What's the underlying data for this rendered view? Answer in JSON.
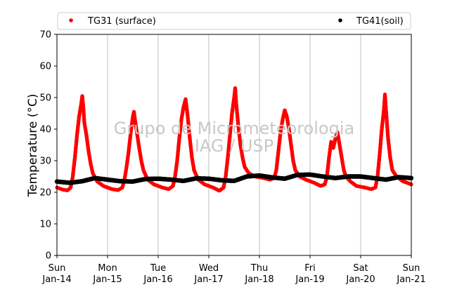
{
  "chart_data": {
    "type": "scatter",
    "ylabel": "Temperature (°C)",
    "ylim": [
      0,
      70
    ],
    "yticks": [
      0,
      10,
      20,
      30,
      40,
      50,
      60,
      70
    ],
    "xlim": [
      "2024-01-14",
      "2024-01-21"
    ],
    "xticks": [
      {
        "day": "Sun",
        "date": "Jan-14"
      },
      {
        "day": "Mon",
        "date": "Jan-15"
      },
      {
        "day": "Tue",
        "date": "Jan-16"
      },
      {
        "day": "Wed",
        "date": "Jan-17"
      },
      {
        "day": "Thu",
        "date": "Jan-18"
      },
      {
        "day": "Fri",
        "date": "Jan-19"
      },
      {
        "day": "Sat",
        "date": "Jan-20"
      },
      {
        "day": "Sun",
        "date": "Jan-21"
      }
    ],
    "grid": "vertical",
    "legend_position": "top",
    "watermark": [
      "Grupo de Micrometeorologia",
      "IAG / USP"
    ],
    "series": [
      {
        "name": "TG31 (surface)",
        "color": "#ff0000",
        "points": [
          [
            "2024-01-14T00:00",
            21.5
          ],
          [
            "2024-01-14T03:00",
            20.8
          ],
          [
            "2024-01-14T05:00",
            20.6
          ],
          [
            "2024-01-14T06:30",
            21.5
          ],
          [
            "2024-01-14T07:30",
            25
          ],
          [
            "2024-01-14T08:30",
            31
          ],
          [
            "2024-01-14T09:30",
            38
          ],
          [
            "2024-01-14T10:30",
            44
          ],
          [
            "2024-01-14T11:30",
            48
          ],
          [
            "2024-01-14T12:00",
            50.5
          ],
          [
            "2024-01-14T12:30",
            47
          ],
          [
            "2024-01-14T13:00",
            42
          ],
          [
            "2024-01-14T14:00",
            38
          ],
          [
            "2024-01-14T15:00",
            33
          ],
          [
            "2024-01-14T16:00",
            29
          ],
          [
            "2024-01-14T17:00",
            26
          ],
          [
            "2024-01-14T19:00",
            23.5
          ],
          [
            "2024-01-14T22:00",
            22
          ],
          [
            "2024-01-15T02:00",
            21
          ],
          [
            "2024-01-15T05:00",
            20.7
          ],
          [
            "2024-01-15T07:00",
            21.5
          ],
          [
            "2024-01-15T08:00",
            24
          ],
          [
            "2024-01-15T09:00",
            28
          ],
          [
            "2024-01-15T10:00",
            33
          ],
          [
            "2024-01-15T11:00",
            39
          ],
          [
            "2024-01-15T12:00",
            44
          ],
          [
            "2024-01-15T12:30",
            45.5
          ],
          [
            "2024-01-15T13:00",
            43
          ],
          [
            "2024-01-15T14:00",
            38.5
          ],
          [
            "2024-01-15T15:00",
            34
          ],
          [
            "2024-01-15T16:00",
            30
          ],
          [
            "2024-01-15T17:00",
            27
          ],
          [
            "2024-01-15T19:00",
            24
          ],
          [
            "2024-01-15T22:00",
            22.5
          ],
          [
            "2024-01-16T02:00",
            21.5
          ],
          [
            "2024-01-16T05:00",
            21
          ],
          [
            "2024-01-16T07:00",
            22
          ],
          [
            "2024-01-16T08:00",
            25
          ],
          [
            "2024-01-16T09:00",
            30
          ],
          [
            "2024-01-16T10:00",
            37
          ],
          [
            "2024-01-16T11:00",
            43
          ],
          [
            "2024-01-16T12:00",
            47
          ],
          [
            "2024-01-16T13:00",
            49.5
          ],
          [
            "2024-01-16T14:00",
            44
          ],
          [
            "2024-01-16T15:00",
            37
          ],
          [
            "2024-01-16T16:00",
            31
          ],
          [
            "2024-01-16T17:00",
            27
          ],
          [
            "2024-01-16T19:00",
            24
          ],
          [
            "2024-01-16T22:00",
            22.5
          ],
          [
            "2024-01-17T02:00",
            21.5
          ],
          [
            "2024-01-17T05:00",
            20.5
          ],
          [
            "2024-01-17T07:00",
            21.5
          ],
          [
            "2024-01-17T08:00",
            25
          ],
          [
            "2024-01-17T09:00",
            31
          ],
          [
            "2024-01-17T10:00",
            38
          ],
          [
            "2024-01-17T11:00",
            45
          ],
          [
            "2024-01-17T12:00",
            50
          ],
          [
            "2024-01-17T12:30",
            53
          ],
          [
            "2024-01-17T13:00",
            48
          ],
          [
            "2024-01-17T14:00",
            41
          ],
          [
            "2024-01-17T15:00",
            35
          ],
          [
            "2024-01-17T16:00",
            31
          ],
          [
            "2024-01-17T17:00",
            28
          ],
          [
            "2024-01-17T19:00",
            26
          ],
          [
            "2024-01-17T22:00",
            25
          ],
          [
            "2024-01-18T02:00",
            24.5
          ],
          [
            "2024-01-18T05:00",
            24
          ],
          [
            "2024-01-18T07:00",
            24.5
          ],
          [
            "2024-01-18T08:00",
            27
          ],
          [
            "2024-01-18T09:00",
            33
          ],
          [
            "2024-01-18T10:00",
            39
          ],
          [
            "2024-01-18T11:00",
            43
          ],
          [
            "2024-01-18T12:00",
            46
          ],
          [
            "2024-01-18T13:00",
            44
          ],
          [
            "2024-01-18T14:00",
            40
          ],
          [
            "2024-01-18T15:00",
            35
          ],
          [
            "2024-01-18T16:00",
            30
          ],
          [
            "2024-01-18T17:00",
            27
          ],
          [
            "2024-01-18T19:00",
            25
          ],
          [
            "2024-01-18T22:00",
            24
          ],
          [
            "2024-01-19T02:00",
            23
          ],
          [
            "2024-01-19T05:00",
            22
          ],
          [
            "2024-01-19T07:00",
            22.5
          ],
          [
            "2024-01-19T08:00",
            25
          ],
          [
            "2024-01-19T09:00",
            31
          ],
          [
            "2024-01-19T10:00",
            36
          ],
          [
            "2024-01-19T11:00",
            34
          ],
          [
            "2024-01-19T12:00",
            37
          ],
          [
            "2024-01-19T13:00",
            39
          ],
          [
            "2024-01-19T14:00",
            35
          ],
          [
            "2024-01-19T15:00",
            31
          ],
          [
            "2024-01-19T16:00",
            27
          ],
          [
            "2024-01-19T17:00",
            25
          ],
          [
            "2024-01-19T19:00",
            23.5
          ],
          [
            "2024-01-19T22:00",
            22
          ],
          [
            "2024-01-20T02:00",
            21.5
          ],
          [
            "2024-01-20T05:00",
            21
          ],
          [
            "2024-01-20T07:00",
            21.5
          ],
          [
            "2024-01-20T08:00",
            25
          ],
          [
            "2024-01-20T09:00",
            32
          ],
          [
            "2024-01-20T10:00",
            40
          ],
          [
            "2024-01-20T11:00",
            46
          ],
          [
            "2024-01-20T11:30",
            51
          ],
          [
            "2024-01-20T12:00",
            46
          ],
          [
            "2024-01-20T13:00",
            37
          ],
          [
            "2024-01-20T14:00",
            31
          ],
          [
            "2024-01-20T15:00",
            27
          ],
          [
            "2024-01-20T17:00",
            25
          ],
          [
            "2024-01-20T20:00",
            23.5
          ],
          [
            "2024-01-21T00:00",
            22.5
          ]
        ]
      },
      {
        "name": "TG41(soil)",
        "color": "#000000",
        "points": [
          [
            "2024-01-14T00:00",
            23.4
          ],
          [
            "2024-01-14T06:00",
            23.0
          ],
          [
            "2024-01-14T12:00",
            23.5
          ],
          [
            "2024-01-14T18:00",
            24.5
          ],
          [
            "2024-01-15T00:00",
            24.0
          ],
          [
            "2024-01-15T06:00",
            23.5
          ],
          [
            "2024-01-15T12:00",
            23.4
          ],
          [
            "2024-01-15T18:00",
            24.2
          ],
          [
            "2024-01-16T00:00",
            24.3
          ],
          [
            "2024-01-16T06:00",
            24.0
          ],
          [
            "2024-01-16T12:00",
            23.6
          ],
          [
            "2024-01-16T18:00",
            24.4
          ],
          [
            "2024-01-17T00:00",
            24.3
          ],
          [
            "2024-01-17T06:00",
            23.8
          ],
          [
            "2024-01-17T12:00",
            23.6
          ],
          [
            "2024-01-17T18:00",
            25.0
          ],
          [
            "2024-01-18T00:00",
            25.3
          ],
          [
            "2024-01-18T06:00",
            24.7
          ],
          [
            "2024-01-18T12:00",
            24.3
          ],
          [
            "2024-01-18T18:00",
            25.5
          ],
          [
            "2024-01-19T00:00",
            25.6
          ],
          [
            "2024-01-19T06:00",
            25.0
          ],
          [
            "2024-01-19T12:00",
            24.5
          ],
          [
            "2024-01-19T18:00",
            25.0
          ],
          [
            "2024-01-20T00:00",
            25.0
          ],
          [
            "2024-01-20T06:00",
            24.5
          ],
          [
            "2024-01-20T12:00",
            24.0
          ],
          [
            "2024-01-20T18:00",
            24.8
          ],
          [
            "2024-01-21T00:00",
            24.5
          ]
        ]
      }
    ]
  }
}
